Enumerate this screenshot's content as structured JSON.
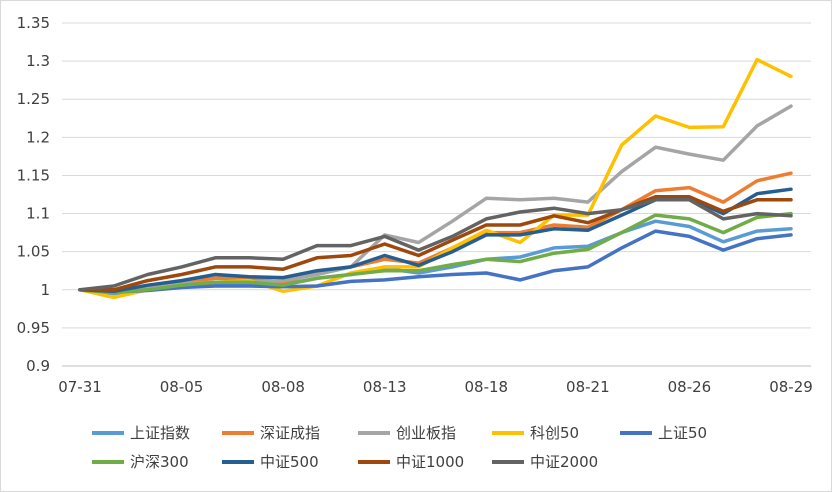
{
  "chart_data": {
    "type": "line",
    "title": "",
    "xlabel": "",
    "ylabel": "",
    "ylim": [
      0.9,
      1.35
    ],
    "yticks": [
      "0.9",
      "0.95",
      "1",
      "1.05",
      "1.1",
      "1.15",
      "1.2",
      "1.25",
      "1.3",
      "1.35"
    ],
    "grid": "horizontal",
    "legend_position": "bottom",
    "x_tick_labels": [
      "07-31",
      "08-05",
      "08-08",
      "08-13",
      "08-18",
      "08-21",
      "08-26",
      "08-29"
    ],
    "x_tick_indices": [
      0,
      3,
      6,
      9,
      12,
      15,
      18,
      21
    ],
    "x_count": 22,
    "series": [
      {
        "name": "上证指数",
        "color": "#5b9bd5",
        "values": [
          1.0,
          0.995,
          1.0,
          1.005,
          1.008,
          1.008,
          1.007,
          1.015,
          1.02,
          1.028,
          1.022,
          1.03,
          1.04,
          1.043,
          1.055,
          1.057,
          1.075,
          1.09,
          1.083,
          1.063,
          1.077,
          1.08
        ]
      },
      {
        "name": "深证成指",
        "color": "#ed7d31",
        "values": [
          1.0,
          0.998,
          1.005,
          1.01,
          1.015,
          1.015,
          1.01,
          1.022,
          1.03,
          1.04,
          1.035,
          1.055,
          1.075,
          1.075,
          1.085,
          1.082,
          1.105,
          1.13,
          1.134,
          1.115,
          1.143,
          1.153
        ]
      },
      {
        "name": "创业板指",
        "color": "#a5a5a5",
        "values": [
          1.0,
          0.997,
          1.002,
          1.008,
          1.01,
          1.01,
          1.012,
          1.02,
          1.03,
          1.072,
          1.062,
          1.09,
          1.12,
          1.118,
          1.12,
          1.115,
          1.155,
          1.187,
          1.178,
          1.17,
          1.215,
          1.241
        ]
      },
      {
        "name": "科创50",
        "color": "#ffc000",
        "values": [
          1.0,
          0.99,
          1.0,
          1.005,
          1.01,
          1.012,
          0.998,
          1.005,
          1.022,
          1.03,
          1.03,
          1.055,
          1.078,
          1.062,
          1.098,
          1.098,
          1.19,
          1.228,
          1.213,
          1.214,
          1.302,
          1.28
        ]
      },
      {
        "name": "上证50",
        "color": "#4472c4",
        "values": [
          1.0,
          0.997,
          0.999,
          1.003,
          1.005,
          1.005,
          1.004,
          1.005,
          1.011,
          1.013,
          1.017,
          1.02,
          1.022,
          1.013,
          1.025,
          1.03,
          1.055,
          1.077,
          1.07,
          1.052,
          1.067,
          1.072
        ]
      },
      {
        "name": "沪深300",
        "color": "#70ad47",
        "values": [
          1.0,
          0.996,
          1.0,
          1.006,
          1.01,
          1.01,
          1.006,
          1.015,
          1.02,
          1.025,
          1.025,
          1.033,
          1.04,
          1.037,
          1.048,
          1.053,
          1.075,
          1.098,
          1.093,
          1.075,
          1.095,
          1.1
        ]
      },
      {
        "name": "中证500",
        "color": "#255e91",
        "values": [
          1.0,
          0.998,
          1.006,
          1.012,
          1.02,
          1.017,
          1.016,
          1.025,
          1.03,
          1.045,
          1.032,
          1.05,
          1.072,
          1.072,
          1.08,
          1.078,
          1.098,
          1.118,
          1.12,
          1.1,
          1.126,
          1.132
        ]
      },
      {
        "name": "中证1000",
        "color": "#9e480e",
        "values": [
          1.0,
          1.0,
          1.012,
          1.02,
          1.03,
          1.03,
          1.027,
          1.042,
          1.045,
          1.06,
          1.045,
          1.065,
          1.085,
          1.085,
          1.097,
          1.088,
          1.105,
          1.122,
          1.122,
          1.103,
          1.118,
          1.118
        ]
      },
      {
        "name": "中证2000",
        "color": "#636363",
        "values": [
          1.0,
          1.005,
          1.02,
          1.03,
          1.042,
          1.042,
          1.04,
          1.058,
          1.058,
          1.07,
          1.052,
          1.07,
          1.093,
          1.102,
          1.107,
          1.1,
          1.105,
          1.118,
          1.118,
          1.093,
          1.1,
          1.097
        ]
      }
    ]
  }
}
